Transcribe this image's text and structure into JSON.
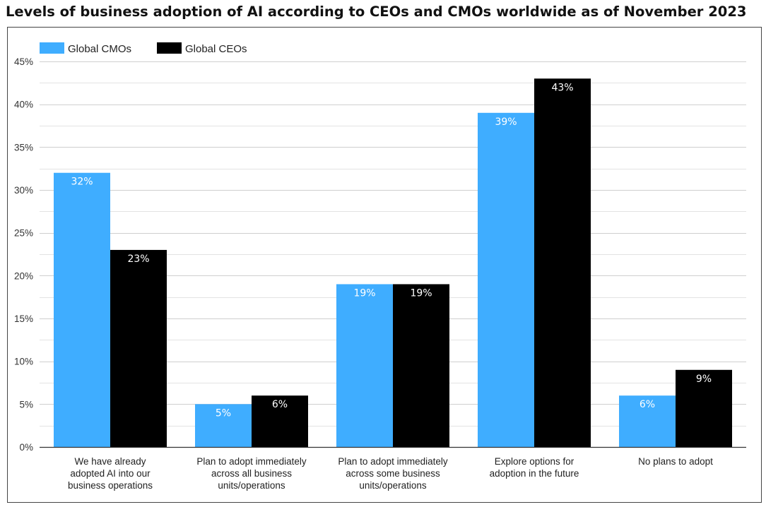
{
  "chart_data": {
    "type": "bar",
    "title": "Levels of business adoption of AI according to CEOs and CMOs worldwide as of November 2023",
    "categories": [
      [
        "We have already",
        "adopted AI into our",
        "business operations"
      ],
      [
        "Plan to adopt immediately",
        "across all business",
        "units/operations"
      ],
      [
        "Plan to adopt immediately",
        "across some business",
        "units/operations"
      ],
      [
        "Explore options for",
        "adoption in the future"
      ],
      [
        "No plans to adopt"
      ]
    ],
    "series": [
      {
        "name": "Global CMOs",
        "color": "#3FADFF",
        "values": [
          32,
          5,
          19,
          39,
          6
        ]
      },
      {
        "name": "Global CEOs",
        "color": "#000000",
        "values": [
          23,
          6,
          19,
          43,
          9
        ]
      }
    ],
    "value_suffix": "%",
    "ylim": [
      0,
      45
    ],
    "yticks": [
      "0%",
      "5%",
      "10%",
      "15%",
      "20%",
      "25%",
      "30%",
      "35%",
      "40%",
      "45%"
    ],
    "ytick_values": [
      0,
      5,
      10,
      15,
      20,
      25,
      30,
      35,
      40,
      45
    ],
    "grid": true,
    "legend_position": "top-left"
  }
}
